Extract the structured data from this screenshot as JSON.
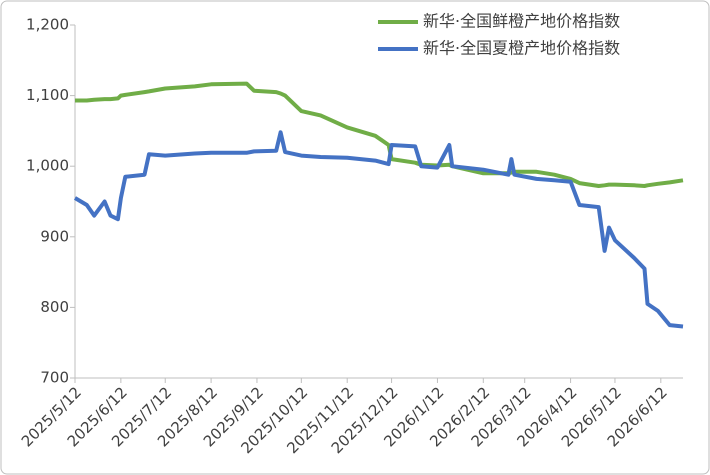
{
  "chart_data": {
    "type": "line",
    "x": [
      "2025/5/12",
      "2025/5/20",
      "2025/5/25",
      "2025/6/1",
      "2025/6/5",
      "2025/6/10",
      "2025/6/12",
      "2025/6/15",
      "2025/6/28",
      "2025/7/1",
      "2025/7/12",
      "2025/8/1",
      "2025/8/12",
      "2025/9/5",
      "2025/9/10",
      "2025/9/25",
      "2025/9/28",
      "2025/10/1",
      "2025/10/12",
      "2025/10/25",
      "2025/11/12",
      "2025/12/1",
      "2025/12/10",
      "2025/12/12",
      "2025/12/28",
      "2026/1/1",
      "2026/1/12",
      "2026/1/20",
      "2026/1/22",
      "2026/2/12",
      "2026/3/1",
      "2026/3/3",
      "2026/3/5",
      "2026/3/20",
      "2026/4/1",
      "2026/4/12",
      "2026/4/18",
      "2026/5/1",
      "2026/5/5",
      "2026/5/8",
      "2026/5/12",
      "2026/5/25",
      "2026/6/1",
      "2026/6/3",
      "2026/6/10",
      "2026/6/18",
      "2026/6/27"
    ],
    "series": [
      {
        "name": "新华·全国鲜橙产地价格指数",
        "color": "#70ad47",
        "values": [
          1093,
          1093,
          1094,
          1095,
          1095,
          1096,
          1100,
          1101,
          1105,
          1106,
          1110,
          1113,
          1116,
          1117,
          1107,
          1105,
          1103,
          1100,
          1078,
          1072,
          1055,
          1043,
          1030,
          1010,
          1005,
          1002,
          1001,
          1002,
          1000,
          990,
          990,
          991,
          992,
          992,
          988,
          982,
          976,
          972,
          973,
          974,
          974,
          973,
          972,
          973,
          975,
          977,
          980
        ]
      },
      {
        "name": "新华·全国夏橙产地价格指数",
        "color": "#4472c4",
        "values": [
          955,
          945,
          930,
          950,
          930,
          925,
          955,
          985,
          988,
          1017,
          1015,
          1018,
          1019,
          1019,
          1021,
          1022,
          1048,
          1020,
          1015,
          1013,
          1012,
          1008,
          1003,
          1030,
          1028,
          1000,
          998,
          1030,
          1000,
          995,
          988,
          1010,
          988,
          982,
          980,
          978,
          945,
          942,
          880,
          913,
          895,
          870,
          855,
          805,
          795,
          775,
          773
        ]
      }
    ],
    "xlim": [
      "2025/5/12",
      "2026/6/27"
    ],
    "xticks": [
      "2025/5/12",
      "2025/6/12",
      "2025/7/12",
      "2025/8/12",
      "2025/9/12",
      "2025/10/12",
      "2025/11/12",
      "2025/12/12",
      "2026/1/12",
      "2026/2/12",
      "2026/3/12",
      "2026/4/12",
      "2026/5/12",
      "2026/6/12"
    ],
    "ylim": [
      700,
      1200
    ],
    "yticks": [
      700,
      800,
      900,
      {
        "value": 1000,
        "label": "1,000"
      },
      {
        "value": 1100,
        "label": "1,100"
      },
      {
        "value": 1200,
        "label": "1,200"
      }
    ],
    "legend": "top-right",
    "grid": false
  }
}
